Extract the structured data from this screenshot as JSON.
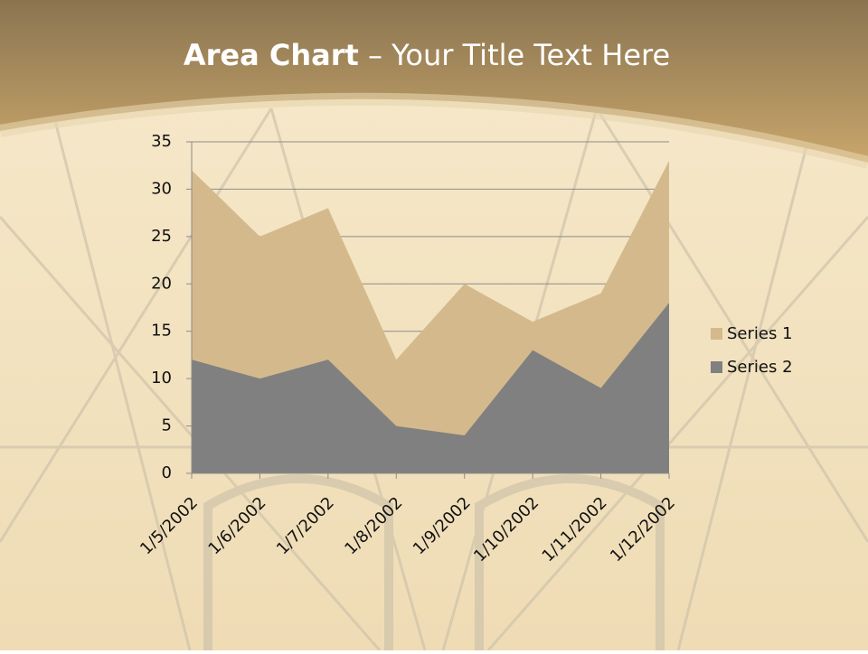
{
  "chart_data": {
    "type": "area",
    "title": {
      "bold": "Area Chart",
      "rest": "– Your Title Text Here"
    },
    "categories": [
      "1/5/2002",
      "1/6/2002",
      "1/7/2002",
      "1/8/2002",
      "1/9/2002",
      "1/10/2002",
      "1/11/2002",
      "1/12/2002"
    ],
    "series": [
      {
        "name": "Series 1",
        "color": "#d4b98c",
        "values": [
          32,
          25,
          28,
          12,
          20,
          16,
          19,
          33
        ]
      },
      {
        "name": "Series 2",
        "color": "#808080",
        "values": [
          12,
          10,
          12,
          5,
          4,
          13,
          9,
          18
        ]
      }
    ],
    "ylim": [
      0,
      35
    ],
    "yticks": [
      0,
      5,
      10,
      15,
      20,
      25,
      30,
      35
    ],
    "grid": true,
    "legend": "right"
  }
}
